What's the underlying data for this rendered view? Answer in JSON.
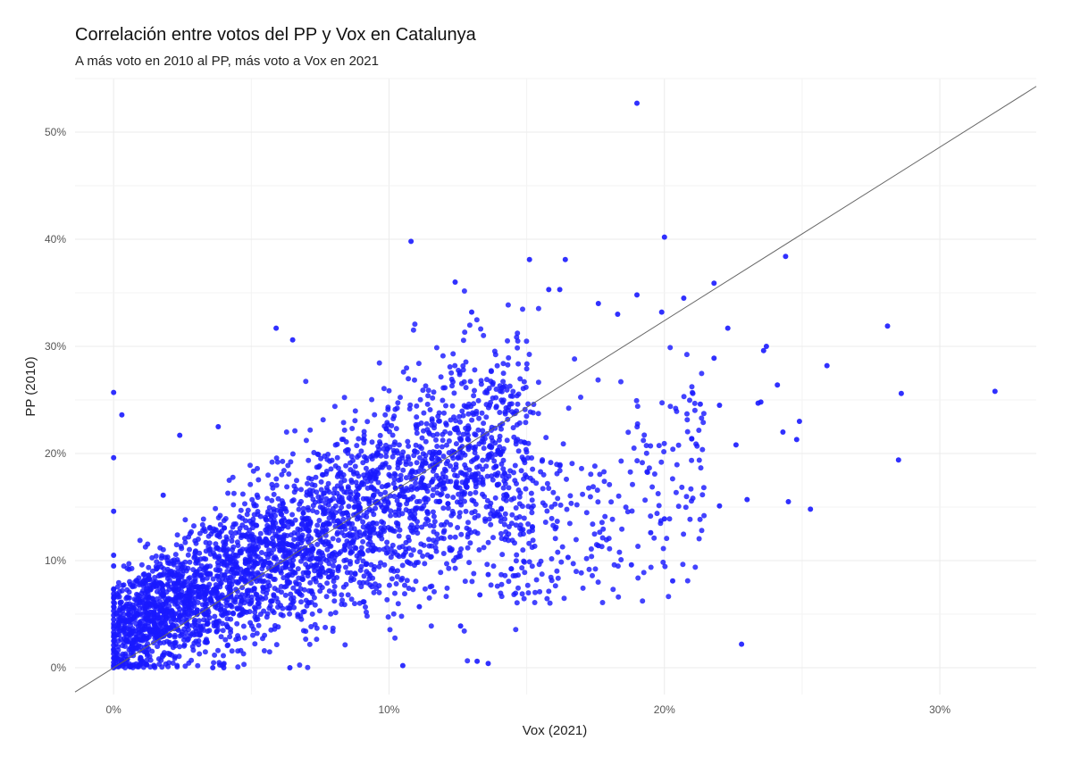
{
  "chart_data": {
    "type": "scatter",
    "title": "Correlación entre votos del PP y Vox en Catalunya",
    "subtitle": "A más voto en 2010 al PP, más voto a Vox en 2021",
    "xlabel": "Vox (2021)",
    "ylabel": "PP (2010)",
    "xlim": [
      -1.4,
      33.5
    ],
    "ylim": [
      -2.5,
      55.0
    ],
    "x_ticks": [
      0,
      10,
      20,
      30
    ],
    "x_tick_labels": [
      "0%",
      "10%",
      "20%",
      "30%"
    ],
    "y_ticks": [
      0,
      10,
      20,
      30,
      40,
      50
    ],
    "y_tick_labels": [
      "0%",
      "10%",
      "20%",
      "30%",
      "40%",
      "50%"
    ],
    "grid": true,
    "point_color": "#1a1aff",
    "line_color": "#666666",
    "reference_line": {
      "intercept": 0,
      "slope": 1.62
    },
    "note": "Dense cloud of several thousand municipality points centered along the reference line; individual points listed below are representative, the dense cloud is approximated.",
    "series": [
      {
        "points": [
          [
            19.0,
            52.7
          ],
          [
            10.8,
            39.8
          ],
          [
            20.0,
            40.2
          ],
          [
            24.4,
            38.4
          ],
          [
            15.1,
            38.1
          ],
          [
            16.4,
            38.1
          ],
          [
            12.4,
            36.0
          ],
          [
            21.8,
            35.9
          ],
          [
            15.8,
            35.3
          ],
          [
            16.2,
            35.3
          ],
          [
            20.7,
            34.5
          ],
          [
            19.0,
            34.8
          ],
          [
            17.6,
            34.0
          ],
          [
            13.0,
            33.2
          ],
          [
            18.3,
            33.0
          ],
          [
            19.9,
            33.2
          ],
          [
            28.1,
            31.9
          ],
          [
            22.3,
            31.7
          ],
          [
            5.9,
            31.7
          ],
          [
            6.5,
            30.6
          ],
          [
            23.7,
            30.0
          ],
          [
            23.6,
            29.6
          ],
          [
            21.8,
            28.9
          ],
          [
            25.9,
            28.2
          ],
          [
            24.1,
            26.4
          ],
          [
            32.0,
            25.8
          ],
          [
            28.6,
            25.6
          ],
          [
            23.5,
            24.8
          ],
          [
            23.4,
            24.7
          ],
          [
            21.3,
            24.6
          ],
          [
            22.0,
            24.5
          ],
          [
            24.3,
            22.0
          ],
          [
            24.9,
            23.0
          ],
          [
            24.8,
            21.3
          ],
          [
            22.6,
            20.8
          ],
          [
            28.5,
            19.4
          ],
          [
            23.0,
            15.7
          ],
          [
            24.5,
            15.5
          ],
          [
            25.3,
            14.8
          ],
          [
            22.0,
            15.1
          ],
          [
            20.3,
            8.1
          ],
          [
            22.8,
            2.2
          ],
          [
            18.8,
            9.6
          ],
          [
            13.6,
            0.4
          ],
          [
            13.2,
            0.6
          ],
          [
            10.5,
            0.2
          ],
          [
            6.4,
            0.0
          ],
          [
            4.0,
            0.0
          ],
          [
            3.6,
            0.0
          ],
          [
            0.0,
            25.7
          ],
          [
            0.0,
            19.6
          ],
          [
            0.0,
            14.6
          ],
          [
            0.3,
            23.6
          ],
          [
            2.4,
            21.7
          ],
          [
            3.8,
            22.5
          ],
          [
            1.8,
            16.1
          ],
          [
            12.6,
            3.9
          ],
          [
            11.1,
            5.7
          ],
          [
            13.3,
            6.8
          ],
          [
            13.6,
            8.7
          ],
          [
            19.5,
            12.6
          ],
          [
            20.0,
            13.9
          ],
          [
            16.5,
            10.3
          ],
          [
            17.6,
            11.4
          ],
          [
            0.0,
            10.5
          ],
          [
            0.0,
            9.5
          ],
          [
            0.0,
            7.3
          ],
          [
            0.0,
            6.9
          ],
          [
            0.0,
            6.5
          ],
          [
            0.0,
            6.1
          ],
          [
            0.0,
            5.7
          ],
          [
            0.0,
            5.3
          ],
          [
            0.0,
            4.9
          ],
          [
            0.0,
            4.5
          ],
          [
            0.0,
            4.1
          ],
          [
            0.0,
            3.7
          ],
          [
            0.0,
            3.3
          ],
          [
            0.0,
            2.9
          ],
          [
            0.0,
            2.5
          ],
          [
            0.0,
            2.1
          ],
          [
            0.0,
            1.7
          ],
          [
            0.0,
            1.3
          ],
          [
            0.0,
            0.9
          ],
          [
            0.0,
            0.5
          ],
          [
            0.0,
            0.0
          ]
        ]
      }
    ]
  }
}
